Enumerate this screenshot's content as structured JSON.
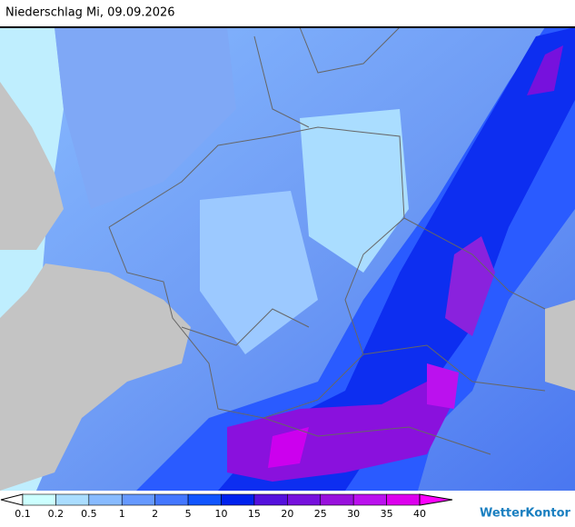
{
  "title": "Niederschlag Mi, 09.09.2026",
  "legend": {
    "ticks": [
      0.1,
      0.2,
      0.5,
      1,
      2,
      5,
      10,
      15,
      20,
      25,
      30,
      35,
      40
    ],
    "colors": [
      "#ffffff",
      "#ccffff",
      "#aaddff",
      "#88bbff",
      "#6699ff",
      "#4477ff",
      "#1155ff",
      "#0022ee",
      "#5511dd",
      "#7711dd",
      "#9911dd",
      "#bb11ee",
      "#dd00ee",
      "#ff00ff"
    ]
  },
  "brand": "WetterKontor"
}
